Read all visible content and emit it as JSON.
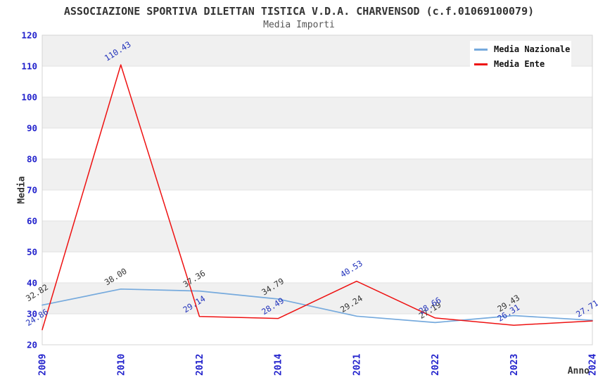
{
  "header": {
    "title": "ASSOCIAZIONE SPORTIVA DILETTAN TISTICA V.D.A. CHARVENSOD (c.f.01069100079)",
    "subtitle": "Media Importi"
  },
  "axes": {
    "y_label": "Media",
    "x_label": "Anno",
    "y_ticks": [
      20,
      30,
      40,
      50,
      60,
      70,
      80,
      90,
      100,
      110,
      120
    ],
    "x_ticks": [
      "2009",
      "2010",
      "2012",
      "2014",
      "2021",
      "2022",
      "2023",
      "2024"
    ]
  },
  "legend": {
    "items": [
      {
        "label": "Media Nazionale",
        "color": "#76aadd"
      },
      {
        "label": "Media Ente",
        "color": "#ee1111"
      }
    ]
  },
  "colors": {
    "title": "#333333",
    "subtitle": "#555555",
    "axis_tick": "#2222cc",
    "band_gray": "#f0f0f0",
    "grid_line": "#e2e2e2",
    "plot_border": "#d4d4d4",
    "nazionale_line": "#76aadd",
    "ente_line": "#ee1111",
    "nazionale_label": "#333333",
    "ente_label": "#2233bb"
  },
  "chart_data": {
    "type": "line",
    "title": "ASSOCIAZIONE SPORTIVA DILETTAN TISTICA V.D.A. CHARVENSOD (c.f.01069100079)",
    "subtitle": "Media Importi",
    "xlabel": "Anno",
    "ylabel": "Media",
    "ylim": [
      20,
      120
    ],
    "ytick_step": 10,
    "grid": "horizontal-bands-alternating",
    "legend_position": "top-right",
    "categories": [
      "2009",
      "2010",
      "2012",
      "2014",
      "2021",
      "2022",
      "2023",
      "2024"
    ],
    "series": [
      {
        "name": "Media Nazionale",
        "color": "#76aadd",
        "label_color": "#333333",
        "values": [
          32.82,
          38.0,
          37.36,
          34.79,
          29.24,
          27.19,
          29.43,
          27.9
        ],
        "labels": [
          "32.82",
          "38.00",
          "37.36",
          "34.79",
          "29.24",
          "27.19",
          "29.43",
          ""
        ]
      },
      {
        "name": "Media Ente",
        "color": "#ee1111",
        "label_color": "#2233bb",
        "values": [
          24.86,
          110.43,
          29.14,
          28.49,
          40.53,
          28.66,
          26.31,
          27.71
        ],
        "labels": [
          "24.86",
          "110.43",
          "29.14",
          "28.49",
          "40.53",
          "28.66",
          "26.31",
          "27.71"
        ]
      }
    ]
  }
}
